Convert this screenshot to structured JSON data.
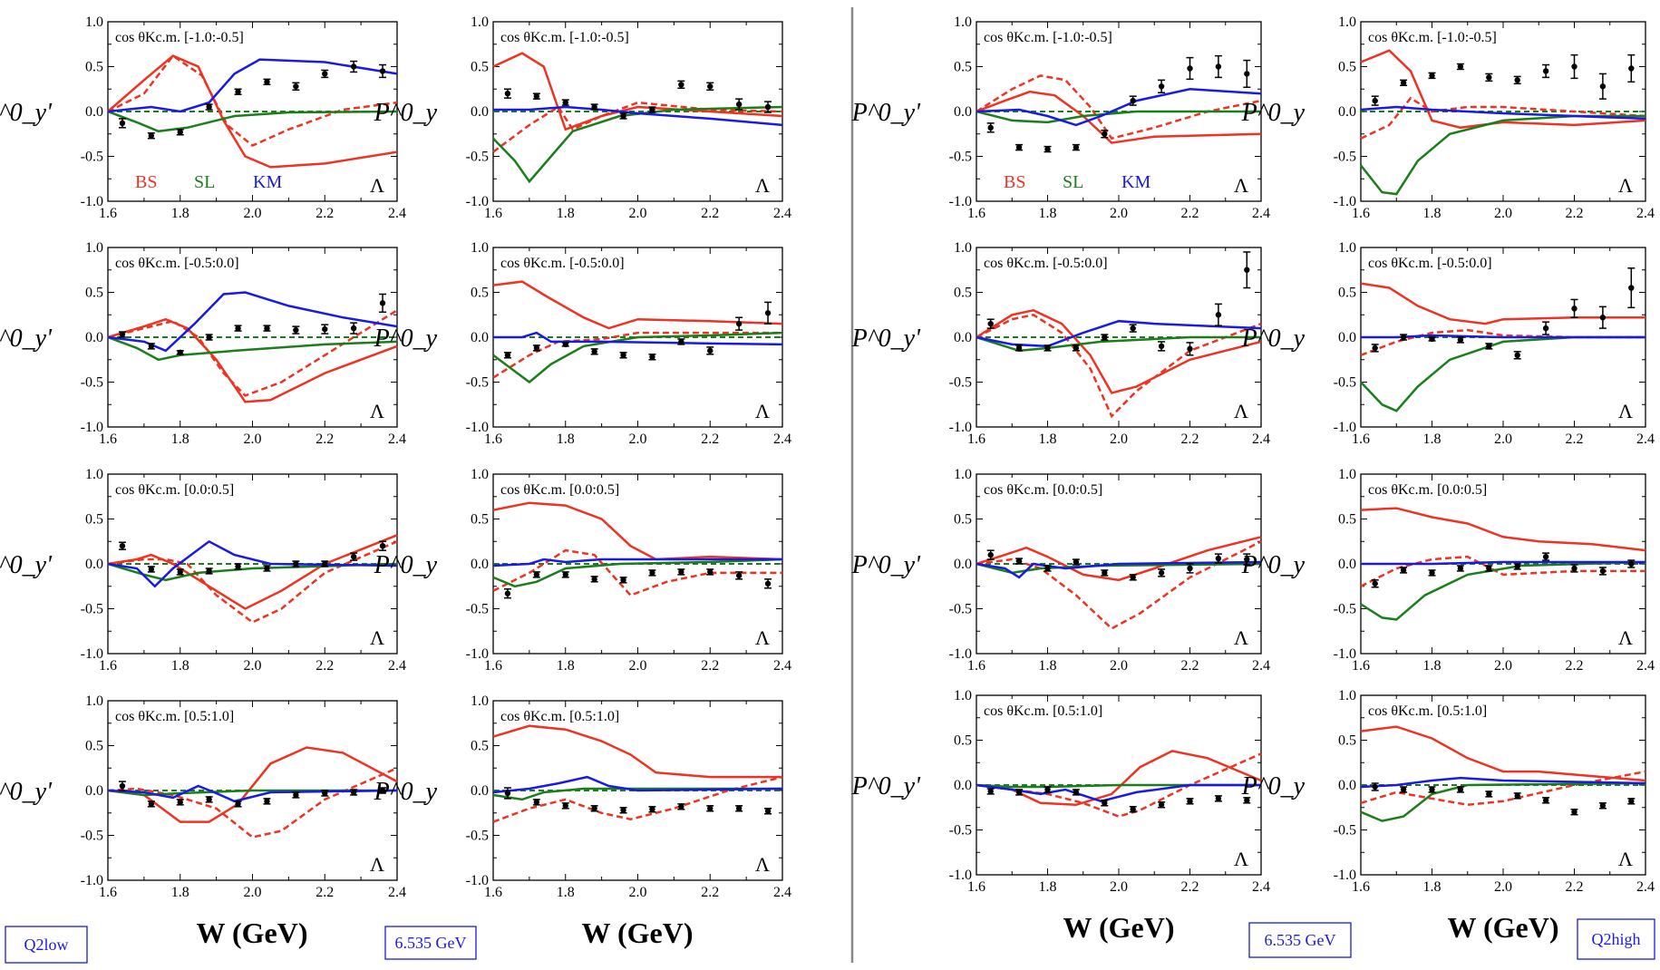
{
  "figure": {
    "xlabel": "W (GeV)",
    "ylabel_prime": "P^0_y'",
    "ylabel": "P^0_y",
    "hyperon": "Λ",
    "legend": [
      {
        "label": "BS",
        "color": "#ee3322"
      },
      {
        "label": "SL",
        "color": "#1a7f1a"
      },
      {
        "label": "KM",
        "color": "#1a1ae6"
      }
    ],
    "bins": [
      "cos θKc.m. [-1.0:-0.5]",
      "cos θKc.m. [-0.5:0.0]",
      "cos θKc.m. [0.0:0.5]",
      "cos θKc.m. [0.5:1.0]"
    ],
    "bottom_boxes": {
      "left_q2": "Q2low",
      "left_energy": "6.535 GeV",
      "right_energy": "6.535 GeV",
      "right_q2": "Q2high"
    },
    "xticks": [
      "1.6",
      "1.8",
      "2.0",
      "2.2",
      "2.4"
    ],
    "yticks": [
      "-1.0",
      "-0.5",
      "0.0",
      "0.5",
      "1.0"
    ],
    "xlim": [
      1.6,
      2.4
    ],
    "ylim": [
      -1.0,
      1.0
    ]
  },
  "chart_data": [
    {
      "type": "scatter",
      "group": "Q2low",
      "observable": "P0y'",
      "bin": "[-1.0:-0.5]",
      "x": [
        1.64,
        1.72,
        1.8,
        1.88,
        1.96,
        2.04,
        2.12,
        2.2,
        2.28,
        2.36
      ],
      "y": [
        -0.13,
        -0.27,
        -0.23,
        0.05,
        0.22,
        0.33,
        0.28,
        0.42,
        0.5,
        0.45
      ],
      "err": [
        0.05,
        0.03,
        0.03,
        0.03,
        0.03,
        0.03,
        0.04,
        0.04,
        0.06,
        0.07
      ]
    },
    {
      "type": "scatter",
      "group": "Q2low",
      "observable": "P0y",
      "bin": "[-1.0:-0.5]",
      "x": [
        1.64,
        1.72,
        1.8,
        1.88,
        1.96,
        2.04,
        2.12,
        2.2,
        2.28,
        2.36
      ],
      "y": [
        0.2,
        0.17,
        0.1,
        0.05,
        -0.05,
        0.02,
        0.3,
        0.28,
        0.08,
        0.05
      ],
      "err": [
        0.05,
        0.03,
        0.03,
        0.03,
        0.03,
        0.03,
        0.04,
        0.04,
        0.06,
        0.06
      ]
    },
    {
      "type": "scatter",
      "group": "Q2low",
      "observable": "P0y'",
      "bin": "[-0.5:0.0]",
      "x": [
        1.64,
        1.72,
        1.8,
        1.88,
        1.96,
        2.04,
        2.12,
        2.2,
        2.28,
        2.36
      ],
      "y": [
        0.03,
        -0.1,
        -0.17,
        0.0,
        0.1,
        0.1,
        0.08,
        0.09,
        0.1,
        0.38
      ],
      "err": [
        0.03,
        0.03,
        0.02,
        0.03,
        0.03,
        0.03,
        0.04,
        0.05,
        0.06,
        0.1
      ]
    },
    {
      "type": "scatter",
      "group": "Q2low",
      "observable": "P0y",
      "bin": "[-0.5:0.0]",
      "x": [
        1.64,
        1.72,
        1.8,
        1.88,
        1.96,
        2.04,
        2.12,
        2.2,
        2.28,
        2.36
      ],
      "y": [
        -0.2,
        -0.12,
        -0.08,
        -0.16,
        -0.2,
        -0.22,
        -0.05,
        -0.15,
        0.15,
        0.27
      ],
      "err": [
        0.03,
        0.03,
        0.02,
        0.03,
        0.03,
        0.03,
        0.03,
        0.04,
        0.07,
        0.12
      ]
    },
    {
      "type": "scatter",
      "group": "Q2low",
      "observable": "P0y'",
      "bin": "[0.0:0.5]",
      "x": [
        1.64,
        1.72,
        1.8,
        1.88,
        1.96,
        2.04,
        2.12,
        2.2,
        2.28,
        2.36
      ],
      "y": [
        0.2,
        -0.06,
        -0.09,
        -0.08,
        -0.03,
        -0.05,
        0.0,
        0.0,
        0.08,
        0.2
      ],
      "err": [
        0.04,
        0.03,
        0.03,
        0.03,
        0.03,
        0.03,
        0.03,
        0.03,
        0.04,
        0.05
      ]
    },
    {
      "type": "scatter",
      "group": "Q2low",
      "observable": "P0y",
      "bin": "[0.0:0.5]",
      "x": [
        1.64,
        1.72,
        1.8,
        1.88,
        1.96,
        2.04,
        2.12,
        2.2,
        2.28,
        2.36
      ],
      "y": [
        -0.33,
        -0.12,
        -0.12,
        -0.17,
        -0.18,
        -0.1,
        -0.09,
        -0.09,
        -0.13,
        -0.22
      ],
      "err": [
        0.05,
        0.03,
        0.03,
        0.03,
        0.03,
        0.03,
        0.03,
        0.03,
        0.04,
        0.05
      ]
    },
    {
      "type": "scatter",
      "group": "Q2low",
      "observable": "P0y'",
      "bin": "[0.5:1.0]",
      "x": [
        1.64,
        1.72,
        1.8,
        1.88,
        1.96,
        2.04,
        2.12,
        2.2,
        2.28,
        2.36
      ],
      "y": [
        0.05,
        -0.15,
        -0.13,
        -0.1,
        -0.15,
        -0.12,
        -0.05,
        -0.03,
        -0.02,
        0.0
      ],
      "err": [
        0.05,
        0.03,
        0.03,
        0.03,
        0.03,
        0.03,
        0.03,
        0.03,
        0.03,
        0.03
      ]
    },
    {
      "type": "scatter",
      "group": "Q2low",
      "observable": "P0y",
      "bin": "[0.5:1.0]",
      "x": [
        1.64,
        1.72,
        1.8,
        1.88,
        1.96,
        2.04,
        2.12,
        2.2,
        2.28,
        2.36
      ],
      "y": [
        -0.03,
        -0.13,
        -0.17,
        -0.2,
        -0.22,
        -0.21,
        -0.18,
        -0.2,
        -0.2,
        -0.23
      ],
      "err": [
        0.06,
        0.03,
        0.03,
        0.03,
        0.03,
        0.03,
        0.03,
        0.03,
        0.03,
        0.03
      ]
    },
    {
      "type": "scatter",
      "group": "Q2high",
      "observable": "P0y'",
      "bin": "[-1.0:-0.5]",
      "x": [
        1.64,
        1.72,
        1.8,
        1.88,
        1.96,
        2.04,
        2.12,
        2.2,
        2.28,
        2.36
      ],
      "y": [
        -0.18,
        -0.4,
        -0.42,
        -0.4,
        -0.25,
        0.12,
        0.28,
        0.48,
        0.5,
        0.42
      ],
      "err": [
        0.05,
        0.03,
        0.03,
        0.03,
        0.04,
        0.05,
        0.07,
        0.12,
        0.12,
        0.15
      ]
    },
    {
      "type": "scatter",
      "group": "Q2high",
      "observable": "P0y",
      "bin": "[-1.0:-0.5]",
      "x": [
        1.64,
        1.72,
        1.8,
        1.88,
        1.96,
        2.04,
        2.12,
        2.2,
        2.28,
        2.36
      ],
      "y": [
        0.12,
        0.32,
        0.4,
        0.5,
        0.38,
        0.35,
        0.45,
        0.5,
        0.28,
        0.48
      ],
      "err": [
        0.05,
        0.03,
        0.03,
        0.03,
        0.04,
        0.04,
        0.07,
        0.13,
        0.14,
        0.15
      ]
    },
    {
      "type": "scatter",
      "group": "Q2high",
      "observable": "P0y'",
      "bin": "[-0.5:0.0]",
      "x": [
        1.64,
        1.72,
        1.8,
        1.88,
        1.96,
        2.04,
        2.12,
        2.2,
        2.28,
        2.36
      ],
      "y": [
        0.15,
        -0.12,
        -0.12,
        -0.12,
        0.0,
        0.1,
        -0.1,
        -0.13,
        0.25,
        0.75
      ],
      "err": [
        0.05,
        0.03,
        0.03,
        0.03,
        0.03,
        0.04,
        0.05,
        0.07,
        0.12,
        0.2
      ]
    },
    {
      "type": "scatter",
      "group": "Q2high",
      "observable": "P0y",
      "bin": "[-0.5:0.0]",
      "x": [
        1.64,
        1.72,
        1.8,
        1.88,
        1.96,
        2.04,
        2.12,
        2.2,
        2.28,
        2.36
      ],
      "y": [
        -0.12,
        0.0,
        -0.02,
        -0.03,
        -0.1,
        -0.2,
        0.1,
        0.32,
        0.22,
        0.55
      ],
      "err": [
        0.04,
        0.03,
        0.02,
        0.03,
        0.03,
        0.04,
        0.07,
        0.1,
        0.12,
        0.22
      ]
    },
    {
      "type": "scatter",
      "group": "Q2high",
      "observable": "P0y'",
      "bin": "[0.0:0.5]",
      "x": [
        1.64,
        1.72,
        1.8,
        1.88,
        1.96,
        2.04,
        2.12,
        2.2,
        2.28,
        2.36
      ],
      "y": [
        0.1,
        0.03,
        -0.05,
        0.02,
        -0.1,
        -0.15,
        -0.1,
        -0.05,
        0.06,
        0.05
      ],
      "err": [
        0.05,
        0.03,
        0.03,
        0.03,
        0.03,
        0.03,
        0.04,
        0.05,
        0.05,
        0.06
      ]
    },
    {
      "type": "scatter",
      "group": "Q2high",
      "observable": "P0y",
      "bin": "[0.0:0.5]",
      "x": [
        1.64,
        1.72,
        1.8,
        1.88,
        1.96,
        2.04,
        2.12,
        2.2,
        2.28,
        2.36
      ],
      "y": [
        -0.22,
        -0.07,
        -0.1,
        -0.05,
        -0.05,
        -0.03,
        0.08,
        -0.05,
        -0.08,
        0.0
      ],
      "err": [
        0.04,
        0.03,
        0.03,
        0.03,
        0.03,
        0.03,
        0.04,
        0.04,
        0.04,
        0.04
      ]
    },
    {
      "type": "scatter",
      "group": "Q2high",
      "observable": "P0y'",
      "bin": "[0.5:1.0]",
      "x": [
        1.64,
        1.72,
        1.8,
        1.88,
        1.96,
        2.04,
        2.12,
        2.2,
        2.28,
        2.36
      ],
      "y": [
        -0.07,
        -0.08,
        -0.05,
        -0.08,
        -0.2,
        -0.27,
        -0.22,
        -0.18,
        -0.15,
        -0.17
      ],
      "err": [
        0.03,
        0.03,
        0.03,
        0.03,
        0.03,
        0.03,
        0.03,
        0.03,
        0.03,
        0.03
      ]
    },
    {
      "type": "scatter",
      "group": "Q2high",
      "observable": "P0y",
      "bin": "[0.5:1.0]",
      "x": [
        1.64,
        1.72,
        1.8,
        1.88,
        1.96,
        2.04,
        2.12,
        2.2,
        2.28,
        2.36
      ],
      "y": [
        -0.02,
        -0.05,
        -0.05,
        -0.05,
        -0.1,
        -0.12,
        -0.17,
        -0.3,
        -0.23,
        -0.18
      ],
      "err": [
        0.04,
        0.03,
        0.03,
        0.03,
        0.03,
        0.03,
        0.03,
        0.03,
        0.03,
        0.03
      ]
    }
  ]
}
